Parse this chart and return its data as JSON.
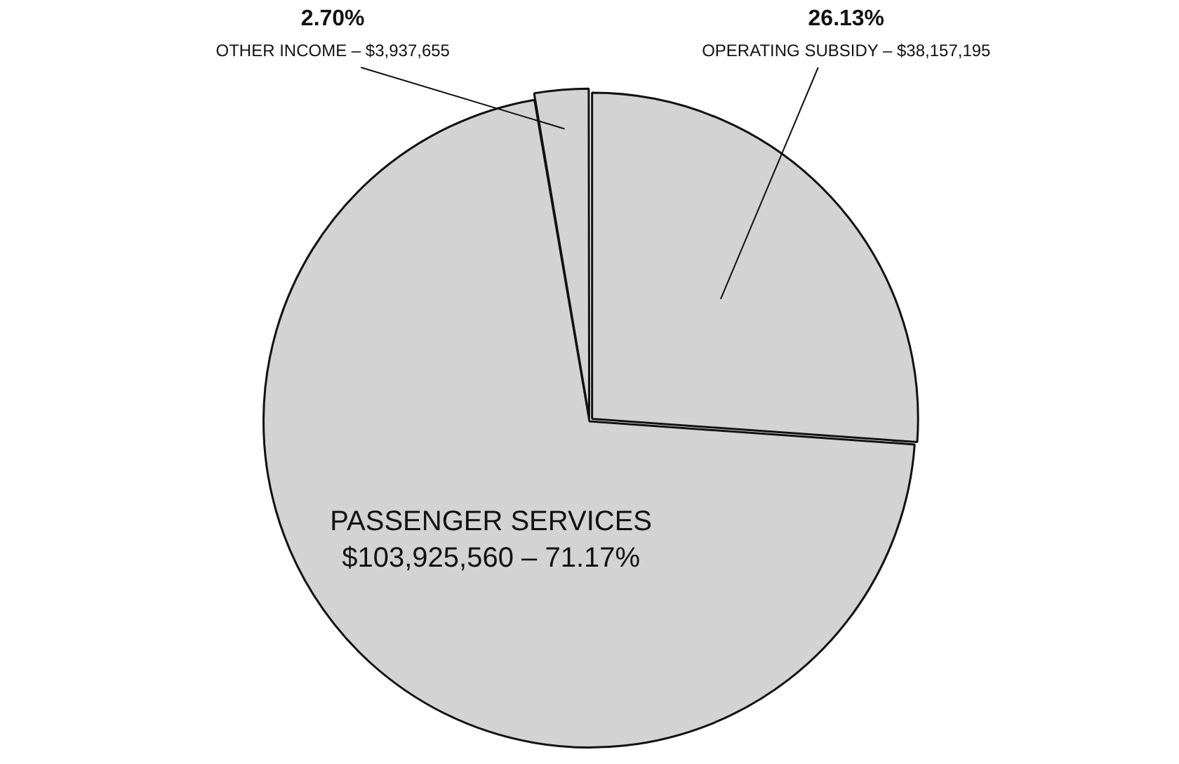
{
  "chart_data": {
    "type": "pie",
    "categories": [
      "OPERATING SUBSIDY – $38,157,195",
      "PASSENGER SERVICES\n$103,925,560 –",
      "OTHER INCOME – $3,937,655"
    ],
    "values": [
      26.13,
      71.17,
      2.7
    ],
    "colors": [
      "#d3d3d3",
      "#d3d3d3",
      "#d3d3d3"
    ],
    "value_labels": [
      "26.13%",
      "71.17%",
      "2.70%"
    ],
    "legend": false
  }
}
